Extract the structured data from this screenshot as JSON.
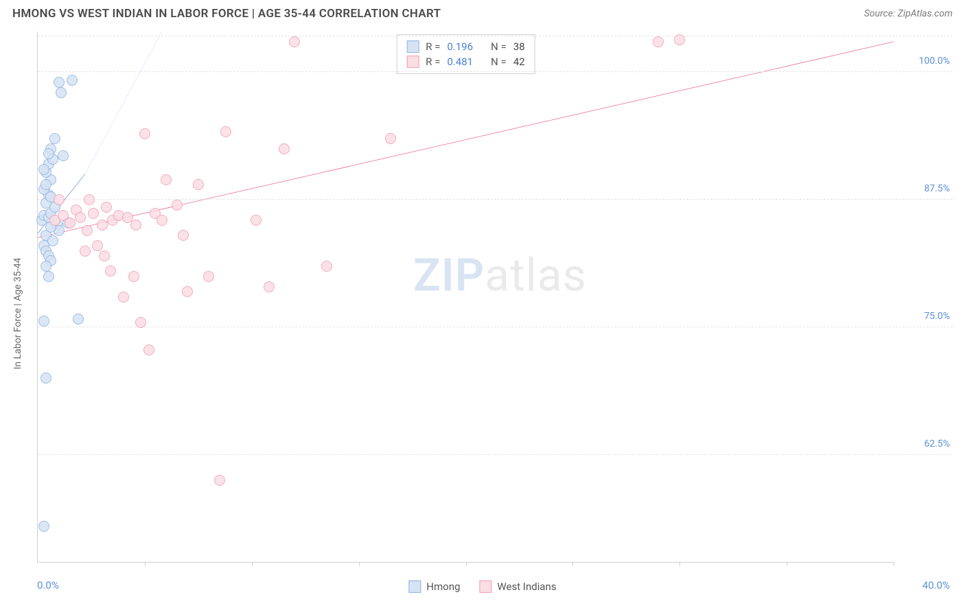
{
  "header": {
    "title": "HMONG VS WEST INDIAN IN LABOR FORCE | AGE 35-44 CORRELATION CHART",
    "source": "Source: ZipAtlas.com"
  },
  "chart": {
    "type": "scatter",
    "y_axis_title": "In Labor Force | Age 35-44",
    "xlim": [
      0,
      40
    ],
    "ylim": [
      52,
      104
    ],
    "x_label_min": "0.0%",
    "x_label_max": "40.0%",
    "x_ticks": [
      5,
      10,
      15,
      20,
      25,
      30,
      35,
      40
    ],
    "y_gridlines": [
      62.5,
      75.0,
      87.5,
      100.0,
      103.5
    ],
    "y_tick_labels": [
      {
        "y": 62.5,
        "text": "62.5%"
      },
      {
        "y": 75.0,
        "text": "75.0%"
      },
      {
        "y": 87.5,
        "text": "87.5%"
      },
      {
        "y": 100.0,
        "text": "100.0%"
      }
    ],
    "background_color": "#ffffff",
    "grid_color": "#e4e4e4",
    "axis_color": "#cfcfcf",
    "marker_size": 16,
    "watermark": {
      "part1": "ZIP",
      "part2": "atlas"
    },
    "series": [
      {
        "name": "Hmong",
        "fill": "#d6e3f4",
        "stroke": "#8eb3e0",
        "R": "0.196",
        "N": "38",
        "trend": {
          "x1": 0,
          "y1": 84.2,
          "x2": 2.2,
          "y2": 90.0,
          "dash_x2": 5.8,
          "dash_y2": 104,
          "color": "#4a7ed6",
          "width": 2.5
        },
        "points": [
          [
            0.2,
            85.5
          ],
          [
            0.3,
            86.0
          ],
          [
            0.4,
            84.0
          ],
          [
            0.5,
            85.8
          ],
          [
            0.6,
            86.2
          ],
          [
            0.4,
            87.2
          ],
          [
            0.5,
            88.0
          ],
          [
            0.3,
            88.5
          ],
          [
            0.6,
            89.5
          ],
          [
            0.4,
            90.2
          ],
          [
            0.5,
            91.0
          ],
          [
            0.7,
            91.5
          ],
          [
            0.3,
            83.0
          ],
          [
            0.4,
            82.5
          ],
          [
            0.5,
            82.0
          ],
          [
            0.6,
            81.5
          ],
          [
            0.4,
            81.0
          ],
          [
            0.5,
            80.0
          ],
          [
            1.0,
            99.0
          ],
          [
            1.6,
            99.2
          ],
          [
            1.1,
            98.0
          ],
          [
            0.8,
            93.5
          ],
          [
            0.6,
            92.5
          ],
          [
            1.2,
            91.8
          ],
          [
            1.4,
            85.2
          ],
          [
            0.3,
            75.6
          ],
          [
            0.4,
            70.0
          ],
          [
            0.3,
            55.5
          ],
          [
            1.9,
            75.8
          ],
          [
            0.8,
            86.8
          ],
          [
            0.9,
            85.0
          ],
          [
            1.0,
            84.5
          ],
          [
            0.7,
            83.5
          ],
          [
            0.6,
            84.8
          ],
          [
            0.4,
            89.0
          ],
          [
            0.3,
            90.5
          ],
          [
            0.5,
            92.0
          ],
          [
            0.6,
            87.8
          ]
        ]
      },
      {
        "name": "West Indians",
        "fill": "#fbdde4",
        "stroke": "#f19eb3",
        "R": "0.481",
        "N": "42",
        "trend": {
          "x1": 0,
          "y1": 83.8,
          "x2": 40,
          "y2": 103.0,
          "color": "#e64c7a",
          "width": 2.5
        },
        "points": [
          [
            0.8,
            85.5
          ],
          [
            1.2,
            86.0
          ],
          [
            1.5,
            85.2
          ],
          [
            1.8,
            86.5
          ],
          [
            2.0,
            85.8
          ],
          [
            2.3,
            84.5
          ],
          [
            2.6,
            86.2
          ],
          [
            3.0,
            85.0
          ],
          [
            3.2,
            86.8
          ],
          [
            3.5,
            85.5
          ],
          [
            3.8,
            86.0
          ],
          [
            4.2,
            85.8
          ],
          [
            2.4,
            87.5
          ],
          [
            2.8,
            83.0
          ],
          [
            3.1,
            82.0
          ],
          [
            3.4,
            80.5
          ],
          [
            4.5,
            80.0
          ],
          [
            4.0,
            78.0
          ],
          [
            4.8,
            75.5
          ],
          [
            5.2,
            72.8
          ],
          [
            5.5,
            86.2
          ],
          [
            6.0,
            89.5
          ],
          [
            6.5,
            87.0
          ],
          [
            7.0,
            78.5
          ],
          [
            7.5,
            89.0
          ],
          [
            8.0,
            80.0
          ],
          [
            8.5,
            60.0
          ],
          [
            10.2,
            85.5
          ],
          [
            10.8,
            79.0
          ],
          [
            11.5,
            92.5
          ],
          [
            12.0,
            103.0
          ],
          [
            5.0,
            94.0
          ],
          [
            8.8,
            94.2
          ],
          [
            16.5,
            93.5
          ],
          [
            13.5,
            81.0
          ],
          [
            4.6,
            85.0
          ],
          [
            2.2,
            82.5
          ],
          [
            1.0,
            87.5
          ],
          [
            29.0,
            103.0
          ],
          [
            30.0,
            103.2
          ],
          [
            5.8,
            85.5
          ],
          [
            6.8,
            84.0
          ]
        ]
      }
    ],
    "legend_top": {
      "rows": [
        {
          "swatch_fill": "#d6e3f4",
          "swatch_stroke": "#8eb3e0",
          "r_label": "R =",
          "r_val": "0.196",
          "n_label": "N =",
          "n_val": "38"
        },
        {
          "swatch_fill": "#fbdde4",
          "swatch_stroke": "#f19eb3",
          "r_label": "R =",
          "r_val": "0.481",
          "n_label": "N =",
          "n_val": "42"
        }
      ]
    },
    "legend_bottom": [
      {
        "swatch_fill": "#d6e3f4",
        "swatch_stroke": "#8eb3e0",
        "label": "Hmong"
      },
      {
        "swatch_fill": "#fbdde4",
        "swatch_stroke": "#f19eb3",
        "label": "West Indians"
      }
    ]
  }
}
